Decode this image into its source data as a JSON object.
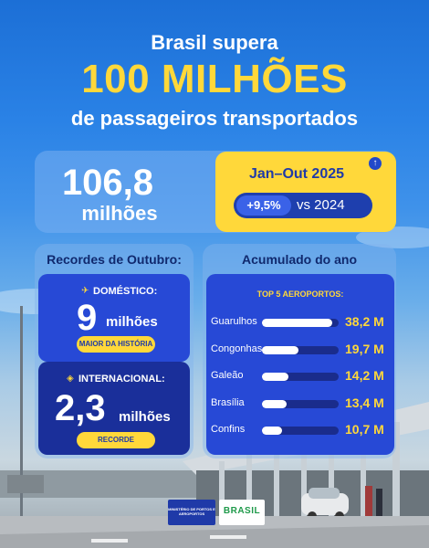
{
  "headline": {
    "line1": "Brasil supera",
    "line2": "100 MILHÕES",
    "line3": "de passageiros transportados"
  },
  "total": {
    "value": "106,8",
    "unit": "milhões"
  },
  "period": {
    "label": "Jan–Out 2025",
    "growth": "+9,5%",
    "comparison": "vs 2024",
    "icon": "arrow-up-icon"
  },
  "october": {
    "title": "Recordes de Outubro:",
    "domestic": {
      "label": "DOMÉSTICO:",
      "value": "9",
      "unit": "milhões",
      "badge": "MAIOR DA HISTÓRIA",
      "icon": "airplane-icon"
    },
    "international": {
      "label": "INTERNACIONAL:",
      "value": "2,3",
      "unit": "milhões",
      "badge": "RECORDE",
      "icon": "ticket-icon"
    }
  },
  "accumulated": {
    "title": "Acumulado do ano",
    "subtitle": "TOP 5 AEROPORTOS:",
    "airports": [
      {
        "name": "Guarulhos",
        "value": "38,2 M",
        "amount": 38.2
      },
      {
        "name": "Congonhas",
        "value": "19,7 M",
        "amount": 19.7
      },
      {
        "name": "Galeão",
        "value": "14,2 M",
        "amount": 14.2
      },
      {
        "name": "Brasília",
        "value": "13,4 M",
        "amount": 13.4
      },
      {
        "name": "Confins",
        "value": "10,7 M",
        "amount": 10.7
      }
    ]
  },
  "footer": {
    "ministry": "MINISTÉRIO DE PORTOS E AEROPORTOS",
    "brand": "BRASIL"
  },
  "colors": {
    "yellow": "#ffd83a",
    "blue_dark": "#1a2f9a",
    "blue": "#2749d6"
  }
}
